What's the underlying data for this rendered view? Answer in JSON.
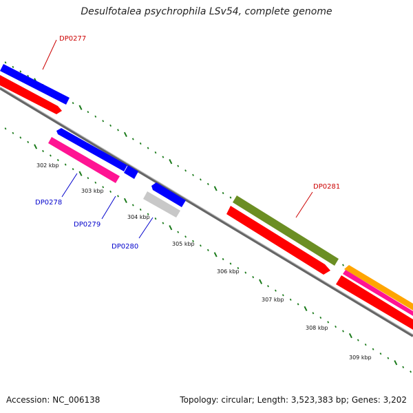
{
  "title": "Desulfotalea psychrophila LSv54, complete genome",
  "footer": {
    "accession": "Accession: NC_006138",
    "topology": "Topology: circular; Length: 3,523,383 bp; Genes: 3,202"
  },
  "colors": {
    "backbone": "#888888",
    "tick": "#1a7a1a",
    "label_forward": "#cc0000",
    "label_reverse": "#0000cc"
  },
  "ticks": [
    {
      "label": "302 kbp"
    },
    {
      "label": "303 kbp"
    },
    {
      "label": "304 kbp"
    },
    {
      "label": "305 kbp"
    },
    {
      "label": "306 kbp"
    },
    {
      "label": "307 kbp"
    },
    {
      "label": "308 kbp"
    },
    {
      "label": "309 kbp"
    }
  ],
  "gene_labels": [
    {
      "text": "DP0277",
      "strand": "forward"
    },
    {
      "text": "DP0278",
      "strand": "reverse"
    },
    {
      "text": "DP0279",
      "strand": "reverse"
    },
    {
      "text": "DP0280",
      "strand": "reverse"
    },
    {
      "text": "DP0281",
      "strand": "forward"
    }
  ]
}
